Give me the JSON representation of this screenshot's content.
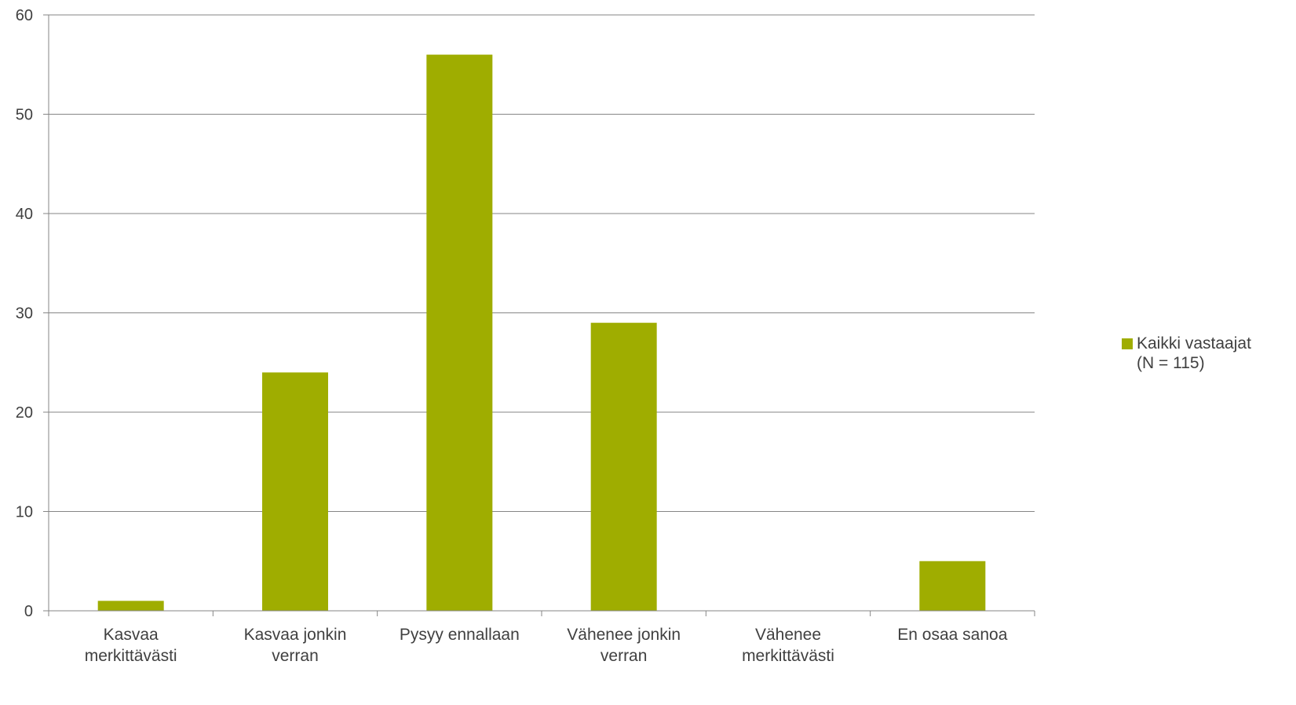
{
  "chart_data": {
    "type": "bar",
    "categories": [
      [
        "Kasvaa",
        "merkittävästi"
      ],
      [
        "Kasvaa jonkin",
        "verran"
      ],
      [
        "Pysyy ennallaan"
      ],
      [
        "Vähenee jonkin",
        "verran"
      ],
      [
        "Vähenee",
        "merkittävästi"
      ],
      [
        "En osaa sanoa"
      ]
    ],
    "series": [
      {
        "name": "Kaikki vastaajat\n(N = 115)",
        "color": "#9FAD00",
        "values": [
          1,
          24,
          56,
          29,
          0,
          5
        ]
      }
    ],
    "ylim": [
      0,
      60
    ],
    "yticks": [
      "0",
      "10",
      "20",
      "30",
      "40",
      "50",
      "60"
    ],
    "grid": true,
    "legend_position": "right"
  }
}
